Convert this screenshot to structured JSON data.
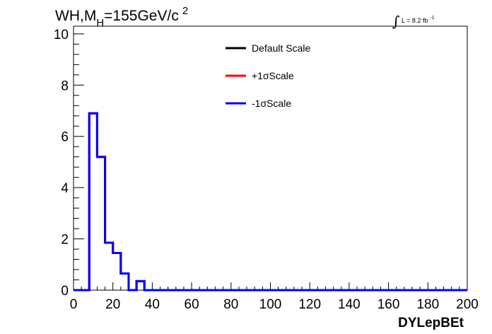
{
  "title_main": "WH,M",
  "title_sub": "H",
  "title_rest": "=155GeV/c",
  "title_sup": "2",
  "lumi_text": "L = 8.2 fb",
  "lumi_sup": "-1",
  "chart_data": {
    "type": "histogram",
    "xlabel": "DYLepBEt",
    "ylabel": "",
    "xlim": [
      0,
      200
    ],
    "ylim": [
      0,
      10.3
    ],
    "x_ticks": [
      0,
      20,
      40,
      60,
      80,
      100,
      120,
      140,
      160,
      180,
      200
    ],
    "y_ticks": [
      0,
      2,
      4,
      6,
      8,
      10
    ],
    "bin_edges": [
      0,
      4,
      8,
      12,
      16,
      20,
      24,
      28,
      32,
      36,
      40,
      44,
      48,
      52,
      56,
      60,
      64,
      68,
      72,
      76,
      80,
      84,
      88,
      92,
      96,
      100,
      104,
      108,
      112,
      116,
      120,
      124,
      128,
      132,
      136,
      140,
      144,
      148,
      152,
      156,
      160,
      164,
      168,
      172,
      176,
      180,
      184,
      188,
      192,
      196,
      200
    ],
    "series": [
      {
        "name": "Default Scale",
        "color": "#000000",
        "values": [
          0,
          0,
          6.9,
          5.2,
          1.85,
          1.45,
          0.65,
          0,
          0.35,
          0,
          0,
          0,
          0,
          0,
          0,
          0,
          0,
          0,
          0,
          0,
          0,
          0,
          0,
          0,
          0,
          0,
          0,
          0,
          0,
          0,
          0,
          0,
          0,
          0,
          0,
          0,
          0,
          0,
          0,
          0,
          0,
          0,
          0,
          0,
          0,
          0,
          0,
          0,
          0,
          0
        ]
      },
      {
        "name": "+1σScale",
        "color": "#ff0000",
        "values": [
          0,
          0,
          6.9,
          5.2,
          1.85,
          1.45,
          0.65,
          0,
          0.35,
          0,
          0,
          0,
          0,
          0,
          0,
          0,
          0,
          0,
          0,
          0,
          0,
          0,
          0,
          0,
          0,
          0,
          0,
          0,
          0,
          0,
          0,
          0,
          0,
          0,
          0,
          0,
          0,
          0,
          0,
          0,
          0,
          0,
          0,
          0,
          0,
          0,
          0,
          0,
          0,
          0
        ]
      },
      {
        "name": "-1σScale",
        "color": "#0000ff",
        "values": [
          0,
          0,
          6.9,
          5.2,
          1.85,
          1.45,
          0.65,
          0,
          0.35,
          0,
          0,
          0,
          0,
          0,
          0,
          0,
          0,
          0,
          0,
          0,
          0,
          0,
          0,
          0,
          0,
          0,
          0,
          0,
          0,
          0,
          0,
          0,
          0,
          0,
          0,
          0,
          0,
          0,
          0,
          0,
          0,
          0,
          0,
          0,
          0,
          0,
          0,
          0,
          0,
          0
        ]
      }
    ],
    "legend_position": "top-center",
    "grid": false
  }
}
